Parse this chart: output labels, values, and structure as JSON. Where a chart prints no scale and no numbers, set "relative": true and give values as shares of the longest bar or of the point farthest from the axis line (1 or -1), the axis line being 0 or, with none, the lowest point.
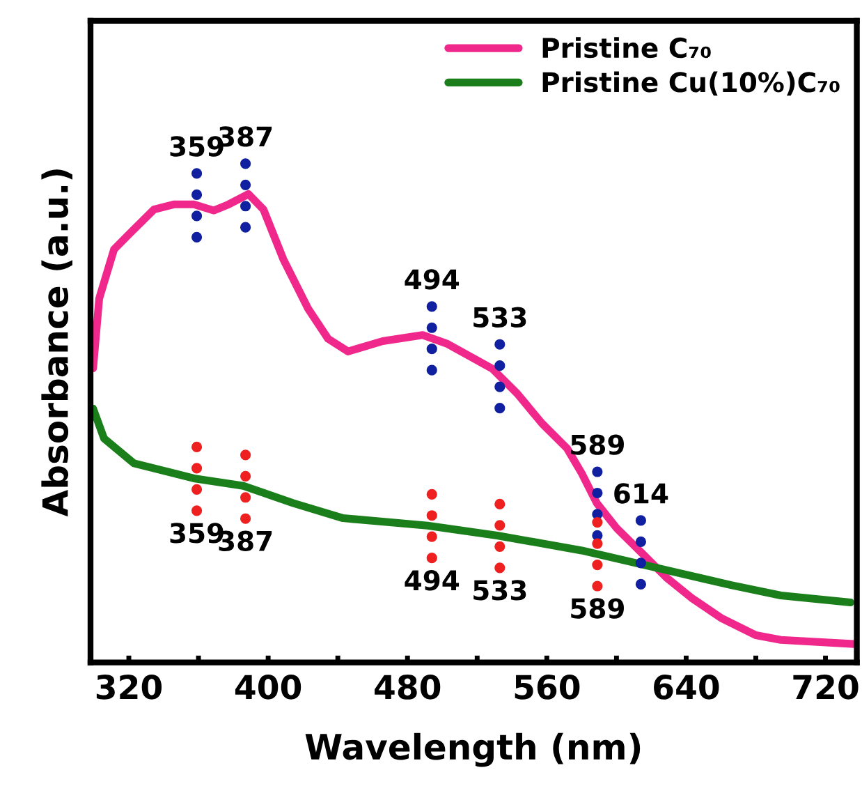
{
  "chart_data": {
    "type": "line",
    "xlabel": "Wavelength (nm)",
    "ylabel": "Absorbance (a.u.)",
    "relative": true,
    "xlim": [
      298,
      738
    ],
    "xticks": [
      320,
      {
        "value": 360,
        "label": null
      },
      400,
      {
        "value": 440,
        "label": null
      },
      480,
      {
        "value": 520,
        "label": null
      },
      560,
      {
        "value": 600,
        "label": null
      },
      640,
      {
        "value": 680,
        "label": null
      },
      720
    ],
    "legend": "top right",
    "grid": false,
    "series": [
      {
        "name": "Pristine C₇₀",
        "color": "#f0288c",
        "x": [
          299.5,
          303,
          311.5,
          320,
          334.4,
          345.8,
          357.3,
          368.7,
          377.3,
          388.7,
          397.3,
          408.7,
          423,
          434.4,
          445.8,
          465.8,
          488.7,
          503,
          528.7,
          543,
          557.3,
          571.6,
          580,
          588.7,
          600,
          614.4,
          628.7,
          643,
          660,
          680,
          694.4,
          738
        ],
        "values": [
          0.628,
          0.777,
          0.882,
          0.914,
          0.967,
          0.978,
          0.978,
          0.965,
          0.978,
          1.0,
          0.967,
          0.861,
          0.755,
          0.691,
          0.664,
          0.686,
          0.699,
          0.68,
          0.627,
          0.574,
          0.51,
          0.457,
          0.404,
          0.34,
          0.287,
          0.234,
          0.181,
          0.138,
          0.095,
          0.058,
          0.048,
          0.039
        ]
      },
      {
        "name": "Pristine Cu(10%)C₇₀",
        "color": "#1a7f1a",
        "x": [
          299.5,
          305.8,
          323,
          357.3,
          385.8,
          414.4,
          443,
          491.5,
          531.5,
          580,
          628.7,
          665.8,
          694.4,
          734.4
        ],
        "values": [
          0.542,
          0.478,
          0.425,
          0.393,
          0.377,
          0.34,
          0.308,
          0.292,
          0.271,
          0.239,
          0.197,
          0.165,
          0.143,
          0.128
        ]
      }
    ],
    "annotations": [
      {
        "text": "359",
        "x": 359,
        "y": 0.976
      },
      {
        "text": "387",
        "x": 387,
        "y": 0.997
      },
      {
        "text": "494",
        "x": 494,
        "y": 0.692
      },
      {
        "text": "533",
        "x": 533,
        "y": 0.611
      },
      {
        "text": "589",
        "x": 589,
        "y": 0.339
      },
      {
        "text": "614",
        "x": 614,
        "y": 0.235
      },
      {
        "text": "359",
        "x": 359,
        "y": 0.392
      },
      {
        "text": "387",
        "x": 387,
        "y": 0.375
      },
      {
        "text": "494",
        "x": 494,
        "y": 0.291
      },
      {
        "text": "533",
        "x": 533,
        "y": 0.27
      },
      {
        "text": "589",
        "x": 589,
        "y": 0.231
      }
    ]
  }
}
